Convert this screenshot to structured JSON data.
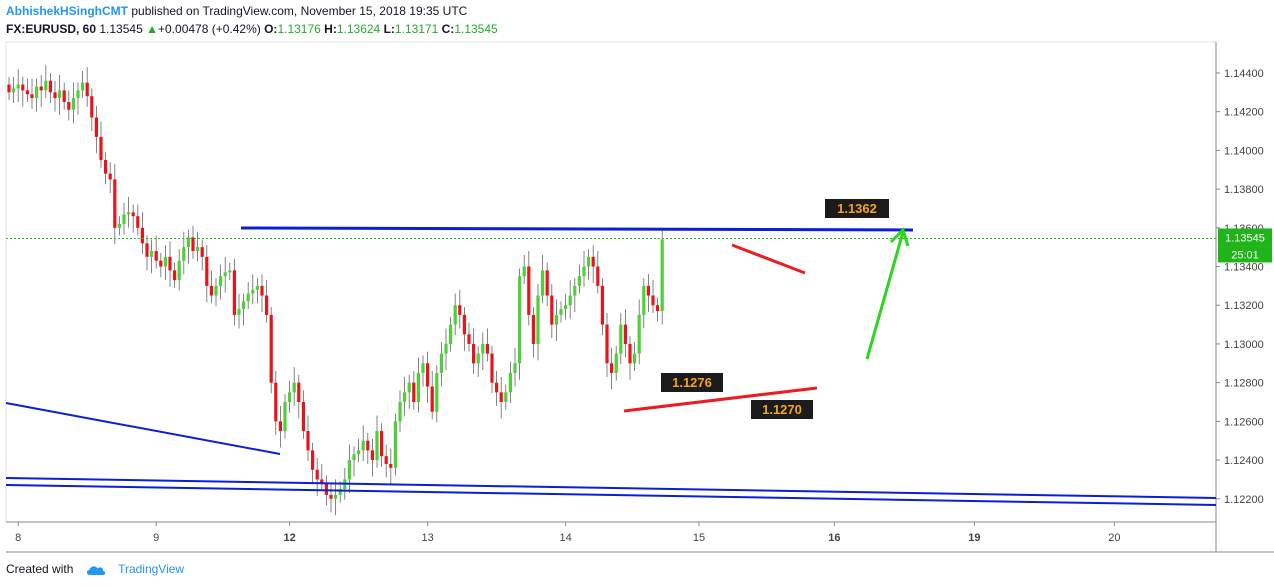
{
  "header": {
    "author": "AbhishekHSinghCMT",
    "published_text": "published on TradingView.com, November 15, 2018 19:35 UTC",
    "symbol": "FX:EURUSD, 60",
    "last": "1.13545",
    "change_arrow": "▲",
    "change": "+0.00478 (+0.42%)",
    "o_label": "O:",
    "o": "1.13176",
    "h_label": "H:",
    "h": "1.13624",
    "l_label": "L:",
    "l": "1.13171",
    "c_label": "C:",
    "c": "1.13545"
  },
  "footer": {
    "created_with": "Created with",
    "brand": "TradingView",
    "logo_icon": "cloud-icon"
  },
  "colors": {
    "up": "#4cd137",
    "down": "#e8141c",
    "blue_line": "#0a1fd6",
    "red_line": "#ea1d24",
    "arrow": "#2bd61f",
    "price_tag": "#1fb41a",
    "label_bg": "#1b1b1b",
    "label_text": "#f7a21b",
    "dashed": "#21c21a"
  },
  "chart_data": {
    "type": "candlestick",
    "ylim": [
      1.1208,
      1.1456
    ],
    "y_ticks": [
      "1.14400",
      "1.14200",
      "1.14000",
      "1.13800",
      "1.13600",
      "1.13400",
      "1.13200",
      "1.13000",
      "1.12800",
      "1.12600",
      "1.12400",
      "1.12200"
    ],
    "x_ticks": [
      "8",
      "9",
      "12",
      "13",
      "14",
      "15",
      "16",
      "19",
      "20"
    ],
    "current_price": "1.13545",
    "countdown": "25:01",
    "annotations": [
      "1.1362",
      "1.1276",
      "1.1270"
    ],
    "hourly_closes": [
      1.143,
      1.1432,
      1.1434,
      1.1431,
      1.1429,
      1.1427,
      1.1433,
      1.1431,
      1.1436,
      1.143,
      1.1427,
      1.1431,
      1.1425,
      1.1421,
      1.1427,
      1.1431,
      1.1435,
      1.1428,
      1.1417,
      1.1407,
      1.1395,
      1.1388,
      1.1385,
      1.136,
      1.1362,
      1.1367,
      1.1368,
      1.1366,
      1.136,
      1.1352,
      1.1345,
      1.1348,
      1.1343,
      1.134,
      1.1345,
      1.1338,
      1.1333,
      1.1343,
      1.135,
      1.1355,
      1.1348,
      1.135,
      1.1345,
      1.133,
      1.1325,
      1.133,
      1.1335,
      1.1337,
      1.1338,
      1.1315,
      1.1318,
      1.1322,
      1.1326,
      1.1328,
      1.133,
      1.1325,
      1.1315,
      1.128,
      1.126,
      1.1255,
      1.127,
      1.1275,
      1.128,
      1.127,
      1.1255,
      1.1245,
      1.1235,
      1.123,
      1.1228,
      1.1222,
      1.122,
      1.1222,
      1.1225,
      1.123,
      1.124,
      1.1243,
      1.1245,
      1.125,
      1.1245,
      1.124,
      1.1255,
      1.1242,
      1.1238,
      1.1236,
      1.126,
      1.127,
      1.1275,
      1.128,
      1.127,
      1.1285,
      1.129,
      1.1278,
      1.1265,
      1.1285,
      1.1295,
      1.13,
      1.131,
      1.132,
      1.1315,
      1.1305,
      1.13,
      1.129,
      1.1295,
      1.13,
      1.1295,
      1.128,
      1.1275,
      1.127,
      1.1275,
      1.1285,
      1.129,
      1.1335,
      1.134,
      1.1315,
      1.13,
      1.1325,
      1.1338,
      1.1325,
      1.131,
      1.1315,
      1.1318,
      1.132,
      1.1325,
      1.133,
      1.1335,
      1.134,
      1.1345,
      1.134,
      1.133,
      1.131,
      1.129,
      1.1285,
      1.1295,
      1.131,
      1.13,
      1.129,
      1.1295,
      1.1315,
      1.133,
      1.1325,
      1.132,
      1.1317,
      1.1354
    ]
  }
}
